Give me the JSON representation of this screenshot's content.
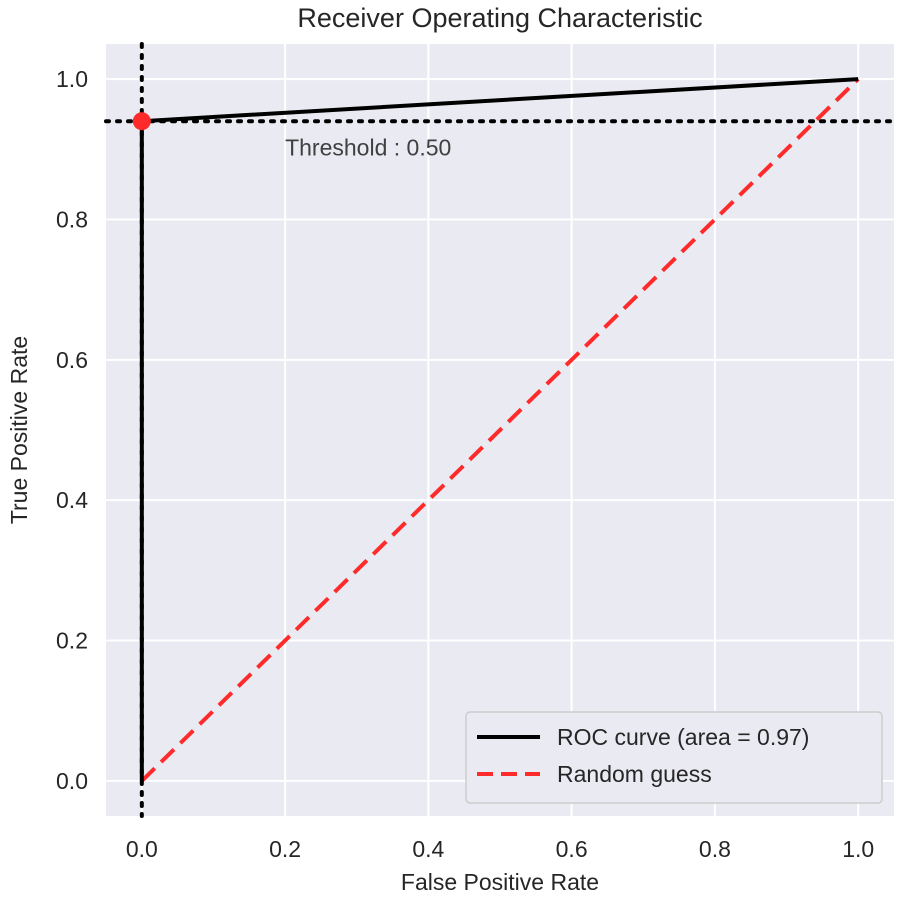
{
  "chart_data": {
    "type": "line",
    "title": "Receiver Operating Characteristic",
    "xlabel": "False Positive Rate",
    "ylabel": "True Positive Rate",
    "xlim": [
      -0.05,
      1.05
    ],
    "ylim": [
      -0.05,
      1.05
    ],
    "xticks": [
      0.0,
      0.2,
      0.4,
      0.6,
      0.8,
      1.0
    ],
    "yticks": [
      0.0,
      0.2,
      0.4,
      0.6,
      0.8,
      1.0
    ],
    "xtick_labels": [
      "0.0",
      "0.2",
      "0.4",
      "0.6",
      "0.8",
      "1.0"
    ],
    "ytick_labels": [
      "0.0",
      "0.2",
      "0.4",
      "0.6",
      "0.8",
      "1.0"
    ],
    "grid": true,
    "series": [
      {
        "name": "ROC curve (area = 0.97)",
        "style": "solid",
        "color": "#000000",
        "x": [
          0.0,
          0.0,
          1.0
        ],
        "y": [
          0.0,
          0.94,
          1.0
        ]
      },
      {
        "name": "Random guess",
        "style": "dashed",
        "color": "#ff2a2a",
        "x": [
          0.0,
          1.0
        ],
        "y": [
          0.0,
          1.0
        ]
      }
    ],
    "threshold_point": {
      "x": 0.0,
      "y": 0.94,
      "color": "#ff2a2a"
    },
    "reference_lines": {
      "vertical_x": 0.0,
      "horizontal_y": 0.94,
      "style": "dotted",
      "color": "#000000"
    },
    "annotation": {
      "text": "Threshold : 0.50",
      "x": 0.2,
      "y": 0.9
    },
    "legend_position": "lower-right"
  }
}
